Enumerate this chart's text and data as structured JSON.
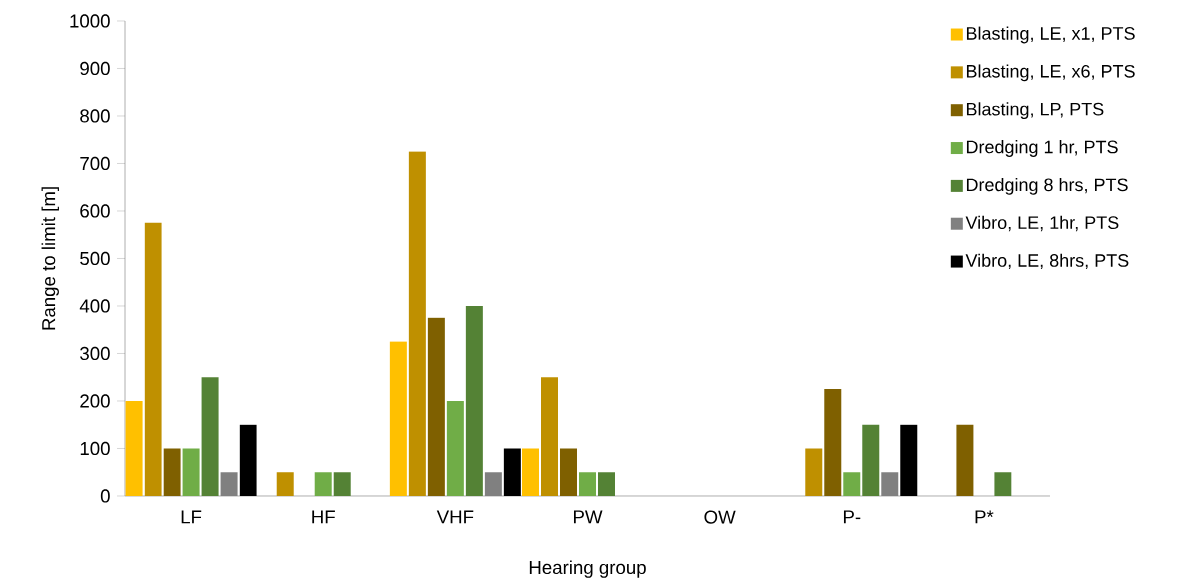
{
  "chart_data": {
    "type": "bar",
    "xlabel": "Hearing group",
    "ylabel": "Range to limit [m]",
    "categories": [
      "LF",
      "HF",
      "VHF",
      "PW",
      "OW",
      "P-",
      "P*"
    ],
    "series": [
      {
        "name": "Blasting, LE, x1, PTS",
        "color": "#ffc000",
        "values": [
          200,
          0,
          325,
          100,
          0,
          0,
          0
        ]
      },
      {
        "name": "Blasting, LE, x6, PTS",
        "color": "#bf9000",
        "values": [
          575,
          50,
          725,
          250,
          0,
          100,
          0
        ]
      },
      {
        "name": "Blasting, LP, PTS",
        "color": "#7f6000",
        "values": [
          100,
          0,
          375,
          100,
          0,
          225,
          150
        ]
      },
      {
        "name": "Dredging 1 hr, PTS",
        "color": "#70ad47",
        "values": [
          100,
          50,
          200,
          50,
          0,
          50,
          0
        ]
      },
      {
        "name": "Dredging 8 hrs, PTS",
        "color": "#548235",
        "values": [
          250,
          50,
          400,
          50,
          0,
          150,
          50
        ]
      },
      {
        "name": "Vibro, LE, 1hr, PTS",
        "color": "#808080",
        "values": [
          50,
          0,
          50,
          0,
          0,
          50,
          0
        ]
      },
      {
        "name": "Vibro, LE, 8hrs, PTS",
        "color": "#000000",
        "values": [
          150,
          0,
          100,
          0,
          0,
          150,
          0
        ]
      }
    ],
    "ylim": [
      0,
      1000
    ],
    "yticks": [
      0,
      100,
      200,
      300,
      400,
      500,
      600,
      700,
      800,
      900,
      1000
    ],
    "legend": "top right"
  }
}
